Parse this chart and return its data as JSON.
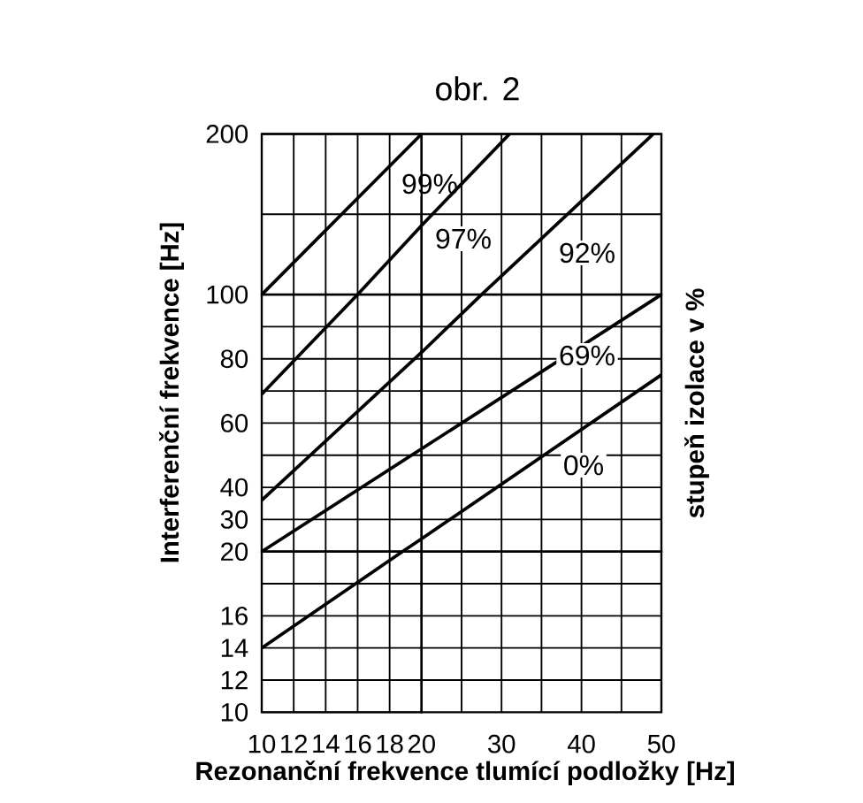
{
  "chart_data": [
    {
      "type": "line",
      "xlim": [
        10,
        20
      ],
      "xticks": [
        10,
        12,
        14,
        16,
        18,
        20
      ],
      "ylim": [
        100,
        200
      ],
      "yticks": [
        100,
        {
          "value": 150,
          "label": null
        },
        200
      ],
      "tick_labels": "y",
      "grid": true,
      "series": [
        {
          "name": "99%",
          "color": "#000000",
          "x": [
            10,
            20
          ],
          "values": [
            100,
            200
          ]
        },
        {
          "color": "#000000",
          "x": [
            16,
            20
          ],
          "values": [
            100,
            143
          ]
        }
      ]
    },
    {
      "type": "line",
      "title": "obr. 2",
      "xlim": [
        20,
        50
      ],
      "xticks": [
        {
          "value": 25,
          "label": null
        },
        30,
        {
          "value": 35,
          "label": null
        },
        40,
        {
          "value": 45,
          "label": null
        },
        50
      ],
      "ylim": [
        100,
        200
      ],
      "yticks": [
        100,
        {
          "value": 150,
          "label": null
        },
        200
      ],
      "tick_labels": false,
      "grid": true,
      "series": [
        {
          "name": "97%",
          "color": "#000000",
          "x": [
            20,
            31
          ],
          "values": [
            143,
            200
          ]
        },
        {
          "name": "92%",
          "color": "#000000",
          "x": [
            27.5,
            49
          ],
          "values": [
            100,
            200
          ]
        }
      ]
    },
    {
      "type": "line",
      "ylabel": "Interferenční frekvence [Hz]",
      "xlim": [
        10,
        20
      ],
      "xticks": [
        10,
        12,
        14,
        16,
        18,
        20
      ],
      "ylim": [
        20,
        100
      ],
      "yticks": [
        30,
        40,
        {
          "value": 50,
          "label": null
        },
        60,
        {
          "value": 70,
          "label": null
        },
        80,
        {
          "value": 90,
          "label": null
        }
      ],
      "tick_labels": "y",
      "grid": true,
      "series": [
        {
          "color": "#000000",
          "x": [
            10,
            16
          ],
          "values": [
            69,
            100
          ]
        },
        {
          "color": "#000000",
          "x": [
            10,
            20
          ],
          "values": [
            36,
            82
          ]
        },
        {
          "color": "#000000",
          "x": [
            10,
            20
          ],
          "values": [
            20,
            52
          ]
        },
        {
          "color": "#000000",
          "x": [
            18.8,
            20
          ],
          "values": [
            20,
            24
          ]
        }
      ]
    },
    {
      "type": "line",
      "y2label": "stupeň izolace v %",
      "xlim": [
        20,
        50
      ],
      "xticks": [
        {
          "value": 25,
          "label": null
        },
        30,
        {
          "value": 35,
          "label": null
        },
        40,
        {
          "value": 45,
          "label": null
        },
        50
      ],
      "ylim": [
        20,
        100
      ],
      "yticks": [
        30,
        40,
        {
          "value": 50,
          "label": null
        },
        60,
        {
          "value": 70,
          "label": null
        },
        80,
        {
          "value": 90,
          "label": null
        }
      ],
      "tick_labels": false,
      "grid": true,
      "series": [
        {
          "color": "#000000",
          "x": [
            20,
            27.5
          ],
          "values": [
            82,
            100
          ]
        },
        {
          "name": "69%",
          "color": "#000000",
          "x": [
            20,
            50
          ],
          "values": [
            52,
            100
          ]
        },
        {
          "name": "0%",
          "color": "#000000",
          "x": [
            20,
            50
          ],
          "values": [
            24,
            75
          ]
        }
      ]
    },
    {
      "type": "line",
      "xlim": [
        10,
        20
      ],
      "xticks": [
        10,
        12,
        14,
        16,
        18,
        20
      ],
      "ylim": [
        10,
        20
      ],
      "yticks": [
        10,
        12,
        14,
        16,
        {
          "value": 18,
          "label": null
        },
        20
      ],
      "grid": true,
      "series": [
        {
          "color": "#000000",
          "x": [
            10,
            18.8
          ],
          "values": [
            14,
            20
          ]
        }
      ]
    },
    {
      "type": "line",
      "xlabel": "Rezonanční frekvence tlumící podložky [Hz]",
      "xlim": [
        20,
        50
      ],
      "xticks": [
        {
          "value": 25,
          "label": null
        },
        30,
        {
          "value": 35,
          "label": null
        },
        40,
        {
          "value": 45,
          "label": null
        },
        50
      ],
      "ylim": [
        10,
        20
      ],
      "yticks": [
        12,
        14,
        16,
        {
          "value": 18,
          "label": null
        }
      ],
      "tick_labels": "x",
      "grid": true
    }
  ]
}
